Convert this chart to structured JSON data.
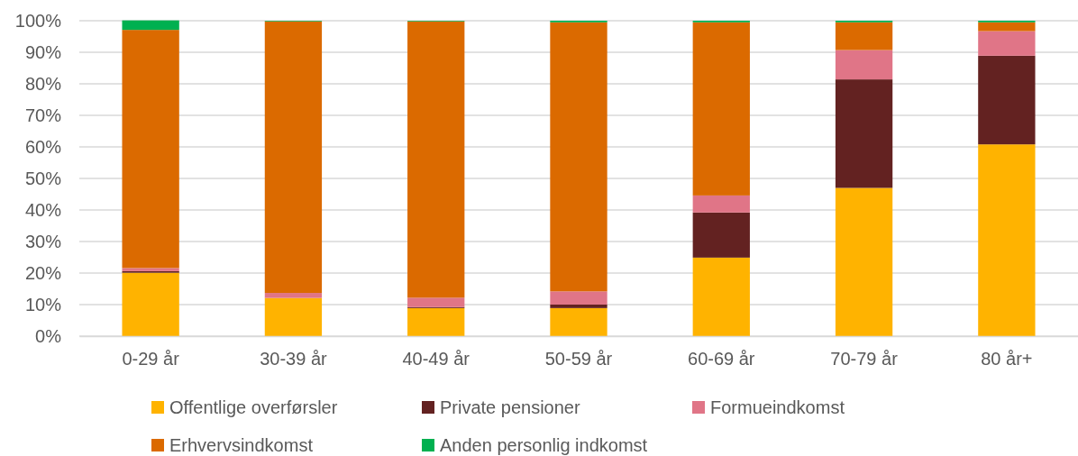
{
  "chart_data": {
    "type": "bar",
    "stacked": true,
    "categories": [
      "0-29 år",
      "30-39 år",
      "40-49 år",
      "50-59 år",
      "60-69 år",
      "70-79 år",
      "80 år+"
    ],
    "series": [
      {
        "name": "Offentlige overførsler",
        "color": "#ffb300",
        "values": [
          20.1,
          12.1,
          8.9,
          8.9,
          24.9,
          47.0,
          60.8
        ]
      },
      {
        "name": "Private pensioner",
        "color": "#632221",
        "values": [
          0.5,
          0,
          0.3,
          1.1,
          14.3,
          34.4,
          28.1
        ]
      },
      {
        "name": "Formueindkomst",
        "color": "#e07587",
        "values": [
          1.0,
          1.6,
          3.0,
          4.2,
          5.4,
          9.3,
          7.8
        ]
      },
      {
        "name": "Erhvervsindkomst",
        "color": "#db6a00",
        "values": [
          75.5,
          86.1,
          87.6,
          85.3,
          54.9,
          8.8,
          2.8
        ]
      },
      {
        "name": "Anden personlig indkomst",
        "color": "#00b050",
        "values": [
          3.0,
          0.2,
          0.2,
          0.5,
          0.5,
          0.5,
          0.5
        ]
      }
    ],
    "ylim": [
      0,
      100
    ],
    "yticks": [
      {
        "value": 0,
        "label": "0%"
      },
      {
        "value": 10,
        "label": "10%"
      },
      {
        "value": 20,
        "label": "20%"
      },
      {
        "value": 30,
        "label": "30%"
      },
      {
        "value": 40,
        "label": "40%"
      },
      {
        "value": 50,
        "label": "50%"
      },
      {
        "value": 60,
        "label": "60%"
      },
      {
        "value": 70,
        "label": "70%"
      },
      {
        "value": 80,
        "label": "80%"
      },
      {
        "value": 90,
        "label": "90%"
      },
      {
        "value": 100,
        "label": "100%"
      }
    ],
    "grid": "y",
    "legend": "bottom"
  }
}
